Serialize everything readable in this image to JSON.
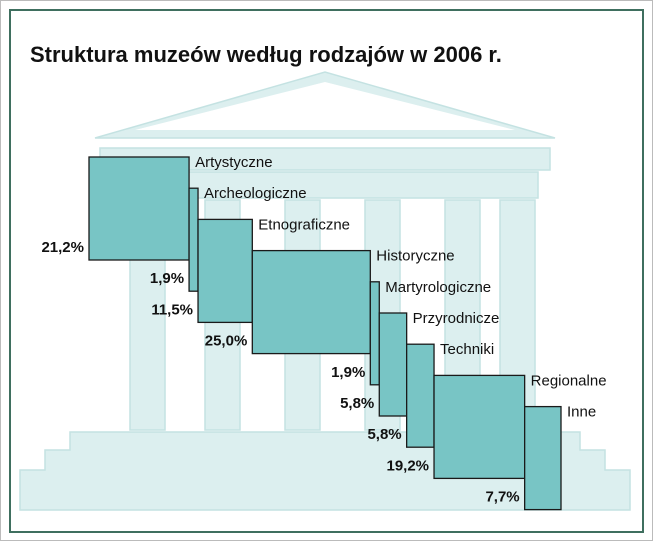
{
  "chart_data": {
    "type": "cascade",
    "title": "Struktura muzeów według rodzajów w 2006 r.",
    "categories": [
      "Artystyczne",
      "Archeologiczne",
      "Etnograficzne",
      "Historyczne",
      "Martyrologiczne",
      "Przyrodnicze",
      "Techniki",
      "Regionalne",
      "Inne"
    ],
    "values": [
      21.2,
      1.9,
      11.5,
      25.0,
      1.9,
      5.8,
      5.8,
      19.2,
      7.7
    ],
    "value_labels": [
      "21,2%",
      "1,9%",
      "11,5%",
      "25,0%",
      "1,9%",
      "5,8%",
      "5,8%",
      "19,2%",
      "7,7%"
    ],
    "color": "#78c5c5"
  }
}
